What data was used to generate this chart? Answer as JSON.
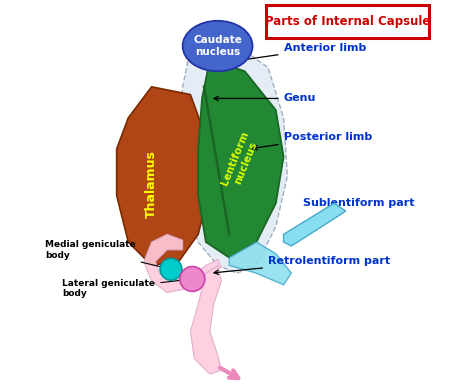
{
  "title": "Parts of Internal Capsule",
  "title_color": "#cc0000",
  "title_box_color": "#cc0000",
  "bg_color": "#ffffff",
  "labels": {
    "caudate_nucleus": "Caudate\nnucleus",
    "lentiform_nucleus": "Lentiform\nnucleus",
    "thalamus": "Thalamus",
    "anterior_limb": "Anterior limb",
    "genu": "Genu",
    "posterior_limb": "Posterior limb",
    "sublentiform": "Sublentiform part",
    "retrolentiform": "Retrolentiform part",
    "medial_geniculate": "Medial geniculate\nbody",
    "lateral_geniculate": "Lateral geniculate\nbody"
  },
  "colors": {
    "caudate": "#4466cc",
    "lentiform": "#228833",
    "lentiform_dark": "#1a6625",
    "thalamus": "#b04515",
    "internal_capsule_bg": "#dce8f2",
    "sublentiform_fill": "#88ddee",
    "retrolentiform_fill": "#ffccdd",
    "medial_geniculate": "#00cccc",
    "lateral_geniculate": "#ee88cc",
    "label_blue": "#0033cc",
    "lentiform_label": "#ddff00",
    "thalamus_label": "#ffff00"
  }
}
